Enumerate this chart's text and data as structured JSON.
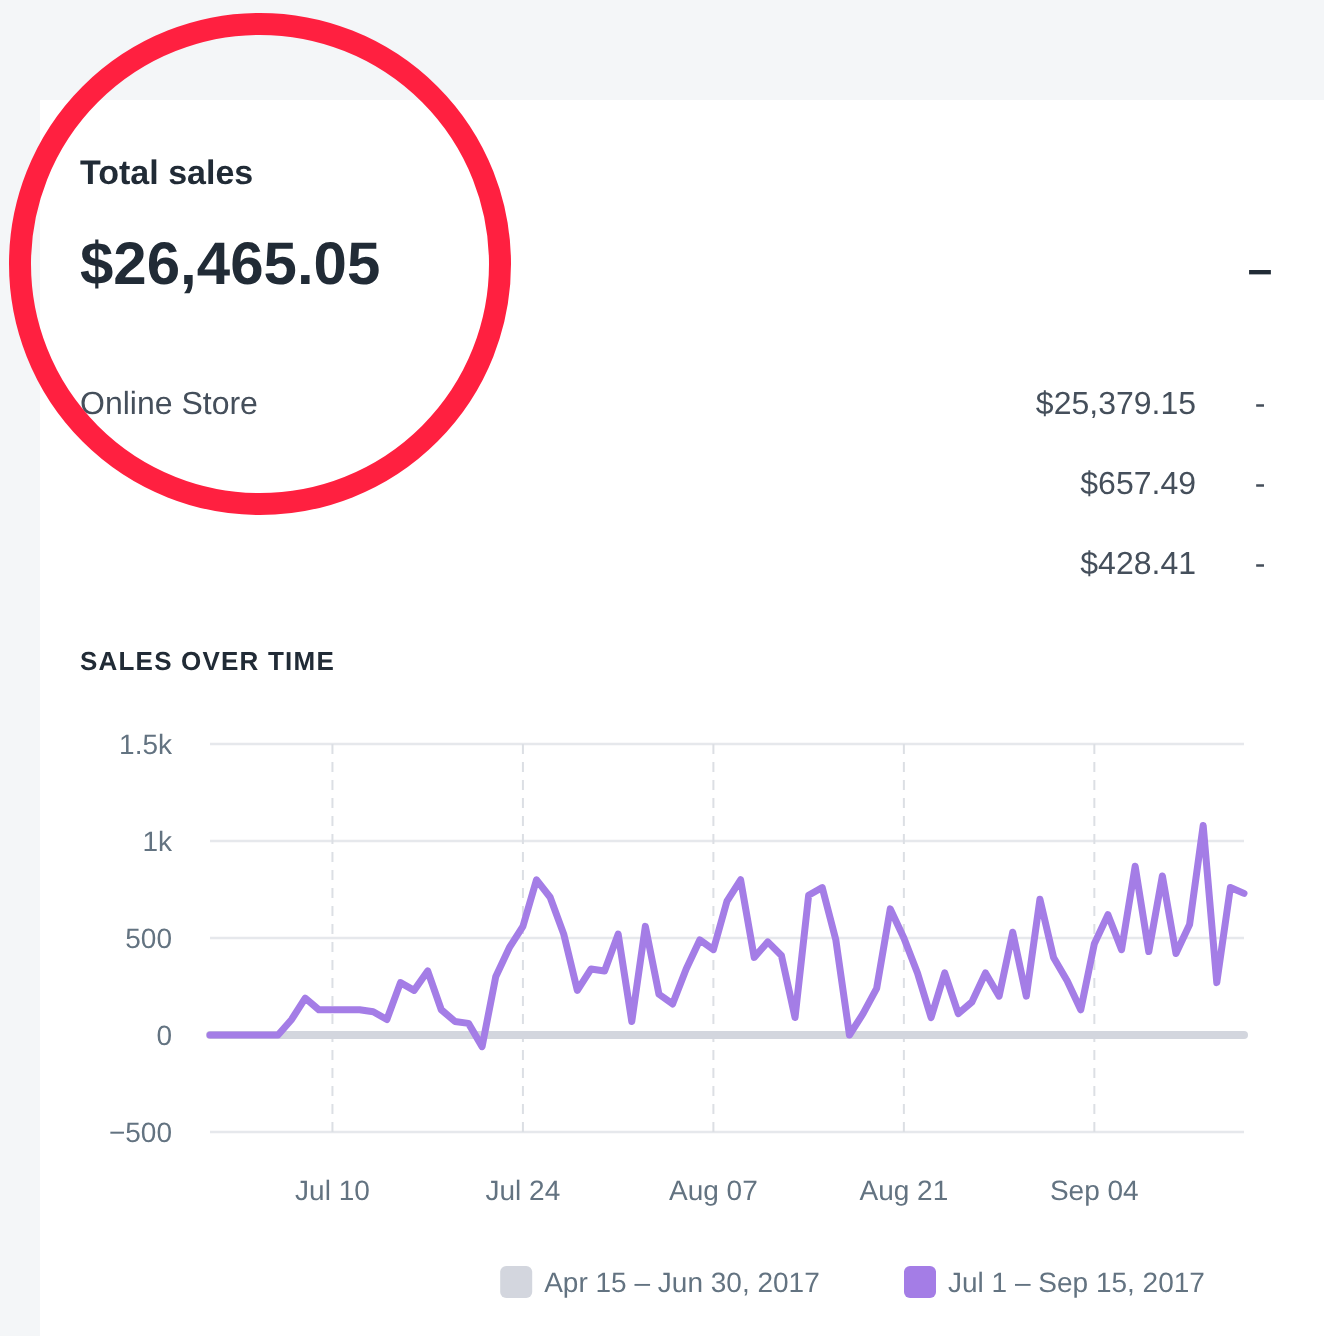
{
  "chart_data": {
    "type": "line",
    "title": "SALES OVER TIME",
    "annotations": [
      "Total sales",
      "$26,465.05",
      "–",
      "Online Store",
      "$25,379.15",
      "-",
      "$657.49",
      "-",
      "$428.41",
      "-"
    ],
    "x": [
      "2017-07-01",
      "2017-07-02",
      "2017-07-03",
      "2017-07-04",
      "2017-07-05",
      "2017-07-06",
      "2017-07-07",
      "2017-07-08",
      "2017-07-09",
      "2017-07-10",
      "2017-07-11",
      "2017-07-12",
      "2017-07-13",
      "2017-07-14",
      "2017-07-15",
      "2017-07-16",
      "2017-07-17",
      "2017-07-18",
      "2017-07-19",
      "2017-07-20",
      "2017-07-21",
      "2017-07-22",
      "2017-07-23",
      "2017-07-24",
      "2017-07-25",
      "2017-07-26",
      "2017-07-27",
      "2017-07-28",
      "2017-07-29",
      "2017-07-30",
      "2017-07-31",
      "2017-08-01",
      "2017-08-02",
      "2017-08-03",
      "2017-08-04",
      "2017-08-05",
      "2017-08-06",
      "2017-08-07",
      "2017-08-08",
      "2017-08-09",
      "2017-08-10",
      "2017-08-11",
      "2017-08-12",
      "2017-08-13",
      "2017-08-14",
      "2017-08-15",
      "2017-08-16",
      "2017-08-17",
      "2017-08-18",
      "2017-08-19",
      "2017-08-20",
      "2017-08-21",
      "2017-08-22",
      "2017-08-23",
      "2017-08-24",
      "2017-08-25",
      "2017-08-26",
      "2017-08-27",
      "2017-08-28",
      "2017-08-29",
      "2017-08-30",
      "2017-08-31",
      "2017-09-01",
      "2017-09-02",
      "2017-09-03",
      "2017-09-04",
      "2017-09-05",
      "2017-09-06",
      "2017-09-07",
      "2017-09-08",
      "2017-09-09",
      "2017-09-10",
      "2017-09-11",
      "2017-09-12",
      "2017-09-13",
      "2017-09-14",
      "2017-09-15"
    ],
    "series": [
      {
        "name": "Apr 15 – Jun 30, 2017",
        "color": "#d3d6de",
        "values": [
          0,
          0,
          0,
          0,
          0,
          0,
          0,
          0,
          0,
          0,
          0,
          0,
          0,
          0,
          0,
          0,
          0,
          0,
          0,
          0,
          0,
          0,
          0,
          0,
          0,
          0,
          0,
          0,
          0,
          0,
          0,
          0,
          0,
          0,
          0,
          0,
          0,
          0,
          0,
          0,
          0,
          0,
          0,
          0,
          0,
          0,
          0,
          0,
          0,
          0,
          0,
          0,
          0,
          0,
          0,
          0,
          0,
          0,
          0,
          0,
          0,
          0,
          0,
          0,
          0,
          0,
          0,
          0,
          0,
          0,
          0,
          0,
          0,
          0,
          0,
          0,
          0
        ]
      },
      {
        "name": "Jul 1 – Sep 15, 2017",
        "color": "#a47de6",
        "values": [
          0,
          0,
          0,
          0,
          0,
          0,
          80,
          190,
          130,
          130,
          130,
          130,
          120,
          80,
          270,
          230,
          330,
          130,
          70,
          60,
          -60,
          300,
          450,
          560,
          800,
          710,
          520,
          230,
          340,
          330,
          520,
          70,
          560,
          210,
          160,
          340,
          490,
          440,
          690,
          800,
          400,
          480,
          410,
          90,
          720,
          760,
          490,
          0,
          110,
          240,
          650,
          500,
          320,
          90,
          320,
          110,
          170,
          320,
          200,
          530,
          200,
          700,
          400,
          280,
          130,
          470,
          620,
          440,
          870,
          430,
          820,
          420,
          570,
          1080,
          270,
          760,
          730
        ]
      }
    ],
    "xlim": [
      "2017-07-01",
      "2017-09-15"
    ],
    "xticks": [
      {
        "value": "2017-07-10",
        "label": "Jul 10"
      },
      {
        "value": "2017-07-24",
        "label": "Jul 24"
      },
      {
        "value": "2017-08-07",
        "label": "Aug 07"
      },
      {
        "value": "2017-08-21",
        "label": "Aug 21"
      },
      {
        "value": "2017-09-04",
        "label": "Sep 04"
      }
    ],
    "ylim": [
      -500,
      1500
    ],
    "yticks": [
      {
        "value": -500,
        "label": "−500"
      },
      0,
      500,
      {
        "value": 1000,
        "label": "1k"
      },
      {
        "value": 1500,
        "label": "1.5k"
      }
    ],
    "grid": true,
    "legend": "bottom right",
    "marker": "none",
    "line_style": "solid"
  }
}
